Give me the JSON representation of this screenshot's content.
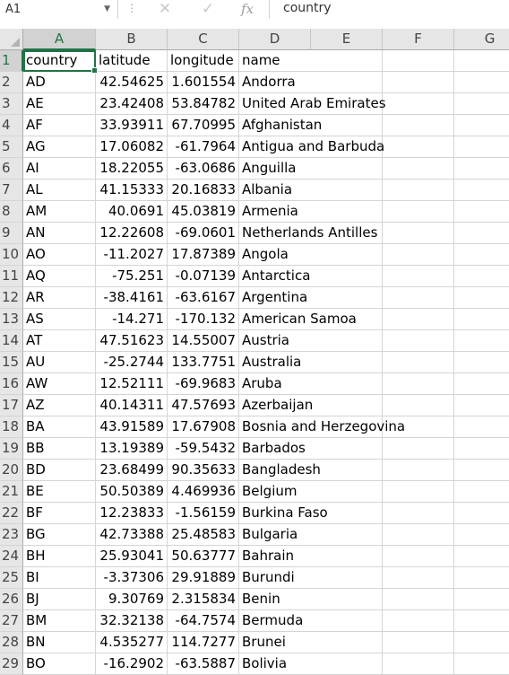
{
  "formula_bar": {
    "name_box": "A1",
    "formula": "country"
  },
  "columns": [
    "A",
    "B",
    "C",
    "D",
    "E",
    "F",
    "G"
  ],
  "headers": [
    "country",
    "latitude",
    "longitude",
    "name"
  ],
  "rows": [
    {
      "n": "1",
      "country": "country",
      "latitude": "latitude",
      "longitude": "longitude",
      "name": "name"
    },
    {
      "n": "2",
      "country": "AD",
      "latitude": "42.54625",
      "longitude": "1.601554",
      "name": "Andorra"
    },
    {
      "n": "3",
      "country": "AE",
      "latitude": "23.42408",
      "longitude": "53.84782",
      "name": "United Arab Emirates"
    },
    {
      "n": "4",
      "country": "AF",
      "latitude": "33.93911",
      "longitude": "67.70995",
      "name": "Afghanistan"
    },
    {
      "n": "5",
      "country": "AG",
      "latitude": "17.06082",
      "longitude": "-61.7964",
      "name": "Antigua and Barbuda"
    },
    {
      "n": "6",
      "country": "AI",
      "latitude": "18.22055",
      "longitude": "-63.0686",
      "name": "Anguilla"
    },
    {
      "n": "7",
      "country": "AL",
      "latitude": "41.15333",
      "longitude": "20.16833",
      "name": "Albania"
    },
    {
      "n": "8",
      "country": "AM",
      "latitude": "40.0691",
      "longitude": "45.03819",
      "name": "Armenia"
    },
    {
      "n": "9",
      "country": "AN",
      "latitude": "12.22608",
      "longitude": "-69.0601",
      "name": "Netherlands Antilles"
    },
    {
      "n": "10",
      "country": "AO",
      "latitude": "-11.2027",
      "longitude": "17.87389",
      "name": "Angola"
    },
    {
      "n": "11",
      "country": "AQ",
      "latitude": "-75.251",
      "longitude": "-0.07139",
      "name": "Antarctica"
    },
    {
      "n": "12",
      "country": "AR",
      "latitude": "-38.4161",
      "longitude": "-63.6167",
      "name": "Argentina"
    },
    {
      "n": "13",
      "country": "AS",
      "latitude": "-14.271",
      "longitude": "-170.132",
      "name": "American Samoa"
    },
    {
      "n": "14",
      "country": "AT",
      "latitude": "47.51623",
      "longitude": "14.55007",
      "name": "Austria"
    },
    {
      "n": "15",
      "country": "AU",
      "latitude": "-25.2744",
      "longitude": "133.7751",
      "name": "Australia"
    },
    {
      "n": "16",
      "country": "AW",
      "latitude": "12.52111",
      "longitude": "-69.9683",
      "name": "Aruba"
    },
    {
      "n": "17",
      "country": "AZ",
      "latitude": "40.14311",
      "longitude": "47.57693",
      "name": "Azerbaijan"
    },
    {
      "n": "18",
      "country": "BA",
      "latitude": "43.91589",
      "longitude": "17.67908",
      "name": "Bosnia and Herzegovina"
    },
    {
      "n": "19",
      "country": "BB",
      "latitude": "13.19389",
      "longitude": "-59.5432",
      "name": "Barbados"
    },
    {
      "n": "20",
      "country": "BD",
      "latitude": "23.68499",
      "longitude": "90.35633",
      "name": "Bangladesh"
    },
    {
      "n": "21",
      "country": "BE",
      "latitude": "50.50389",
      "longitude": "4.469936",
      "name": "Belgium"
    },
    {
      "n": "22",
      "country": "BF",
      "latitude": "12.23833",
      "longitude": "-1.56159",
      "name": "Burkina Faso"
    },
    {
      "n": "23",
      "country": "BG",
      "latitude": "42.73388",
      "longitude": "25.48583",
      "name": "Bulgaria"
    },
    {
      "n": "24",
      "country": "BH",
      "latitude": "25.93041",
      "longitude": "50.63777",
      "name": "Bahrain"
    },
    {
      "n": "25",
      "country": "BI",
      "latitude": "-3.37306",
      "longitude": "29.91889",
      "name": "Burundi"
    },
    {
      "n": "26",
      "country": "BJ",
      "latitude": "9.30769",
      "longitude": "2.315834",
      "name": "Benin"
    },
    {
      "n": "27",
      "country": "BM",
      "latitude": "32.32138",
      "longitude": "-64.7574",
      "name": "Bermuda"
    },
    {
      "n": "28",
      "country": "BN",
      "latitude": "4.535277",
      "longitude": "114.7277",
      "name": "Brunei"
    },
    {
      "n": "29",
      "country": "BO",
      "latitude": "-16.2902",
      "longitude": "-63.5887",
      "name": "Bolivia"
    }
  ],
  "colors": {
    "accent": "#217346",
    "header_bg": "#e6e6e6",
    "gridline": "#d4d4d4"
  },
  "icons": [
    "cancel-icon",
    "enter-icon",
    "insert-function-icon",
    "dropdown-icon"
  ]
}
